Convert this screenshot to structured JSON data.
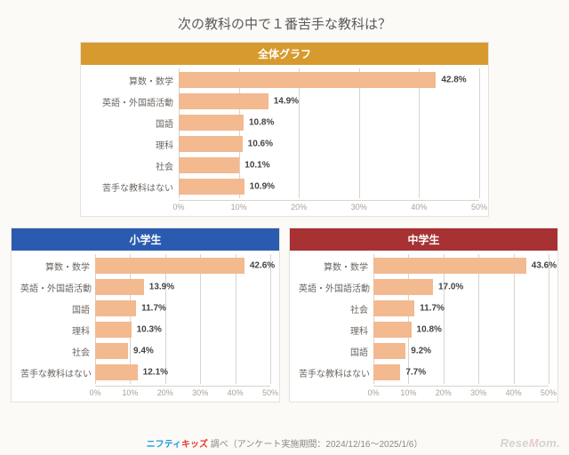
{
  "title": "次の教科の中で１番苦手な教科は？",
  "axis": {
    "max": 50,
    "step": 10,
    "unit": "%"
  },
  "bar_color": "#f3b98f",
  "grid_color": "#d9d4ca",
  "background": "#fcfaf7",
  "charts": {
    "overall": {
      "header": "全体グラフ",
      "header_bg": "#d79a2e",
      "label_width": 100,
      "rows": [
        {
          "label": "算数・数学",
          "value": 42.8
        },
        {
          "label": "英語・外国語活動",
          "value": 14.9
        },
        {
          "label": "国語",
          "value": 10.8
        },
        {
          "label": "理科",
          "value": 10.6
        },
        {
          "label": "社会",
          "value": 10.1
        },
        {
          "label": "苦手な教科はない",
          "value": 10.9
        }
      ]
    },
    "elementary": {
      "header": "小学生",
      "header_bg": "#2b5bb0",
      "label_width": 84,
      "rows": [
        {
          "label": "算数・数学",
          "value": 42.6
        },
        {
          "label": "英語・外国語活動",
          "value": 13.9
        },
        {
          "label": "国語",
          "value": 11.7
        },
        {
          "label": "理科",
          "value": 10.3
        },
        {
          "label": "社会",
          "value": 9.4
        },
        {
          "label": "苦手な教科はない",
          "value": 12.1
        }
      ]
    },
    "junior": {
      "header": "中学生",
      "header_bg": "#a73133",
      "label_width": 84,
      "rows": [
        {
          "label": "算数・数学",
          "value": 43.6
        },
        {
          "label": "英語・外国語活動",
          "value": 17.0
        },
        {
          "label": "社会",
          "value": 11.7
        },
        {
          "label": "理科",
          "value": 10.8
        },
        {
          "label": "国語",
          "value": 9.2
        },
        {
          "label": "苦手な教科はない",
          "value": 7.7
        }
      ]
    }
  },
  "footer": {
    "brand1": "ニフティ",
    "brand2": "キッズ",
    "text": " 調べ（アンケート実施期間：2024/12/16～2025/1/6）"
  },
  "watermark": {
    "t1": "Rese",
    "t2": "M",
    "t3": "om."
  }
}
